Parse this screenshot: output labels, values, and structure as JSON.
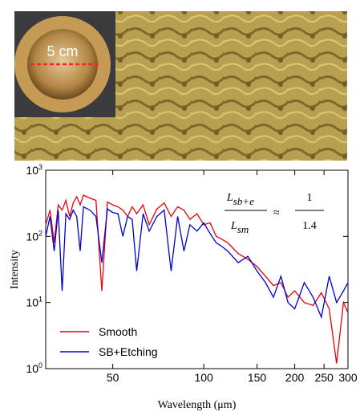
{
  "photo": {
    "scale_label": "5 cm"
  },
  "chart_data": {
    "type": "line",
    "x_label": "Wavelength (μm)",
    "y_label": "Intensity",
    "x": [
      30,
      31,
      32,
      33,
      34,
      35,
      36,
      37,
      38,
      39,
      40,
      42,
      44,
      46,
      48,
      50,
      52,
      54,
      56,
      58,
      60,
      63,
      66,
      70,
      74,
      78,
      82,
      86,
      90,
      95,
      100,
      105,
      110,
      115,
      120,
      130,
      140,
      150,
      160,
      170,
      180,
      190,
      200,
      215,
      230,
      245,
      260,
      275,
      290,
      300
    ],
    "series": [
      {
        "name": "Smooth",
        "color": "#e8000b",
        "values": [
          150,
          250,
          80,
          300,
          250,
          350,
          200,
          320,
          400,
          300,
          420,
          380,
          350,
          15,
          330,
          300,
          280,
          250,
          200,
          280,
          220,
          300,
          150,
          260,
          320,
          200,
          280,
          250,
          180,
          220,
          150,
          160,
          100,
          90,
          80,
          55,
          45,
          35,
          25,
          18,
          20,
          12,
          15,
          10,
          9,
          14,
          8,
          1.2,
          10,
          7
        ]
      },
      {
        "name": "SB+Etching",
        "color": "#0000d0",
        "values": [
          100,
          200,
          60,
          250,
          15,
          220,
          180,
          250,
          200,
          60,
          280,
          250,
          200,
          40,
          260,
          230,
          220,
          100,
          200,
          180,
          30,
          220,
          120,
          200,
          250,
          30,
          200,
          60,
          150,
          120,
          160,
          110,
          80,
          70,
          60,
          40,
          50,
          30,
          20,
          12,
          25,
          10,
          8,
          20,
          12,
          6,
          25,
          10,
          15,
          20
        ]
      }
    ],
    "xlim": [
      30,
      300
    ],
    "xticks": [
      50,
      100,
      150,
      200,
      250,
      300
    ],
    "xscale": "log",
    "ylim": [
      1,
      1000
    ],
    "yscale": "log",
    "yticks": [
      {
        "value": 1,
        "label": "10",
        "exp": "0"
      },
      {
        "value": 10,
        "label": "10",
        "exp": "1"
      },
      {
        "value": 100,
        "label": "10",
        "exp": "2"
      },
      {
        "value": 1000,
        "label": "10",
        "exp": "3"
      }
    ],
    "legend": "lower-left",
    "annotation": {
      "num_base": "L",
      "num_sub": "sb+e",
      "den_base": "L",
      "den_sub": "sm",
      "op": "≈",
      "rhs_num": "1",
      "rhs_den": "1.4"
    }
  }
}
